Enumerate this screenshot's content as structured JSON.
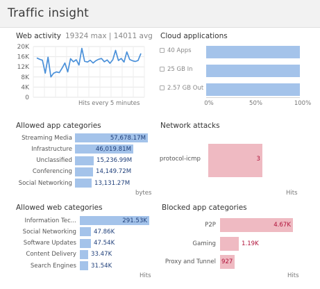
{
  "title": "Traffic insight",
  "web_activity": {
    "title": "Web activity",
    "summary": "19324 max | 14011 avg",
    "footer": "Hits every 5 minutes",
    "y_ticks": [
      "20K",
      "16K",
      "12K",
      "8K",
      "4K",
      "0"
    ],
    "line_color": "#4a90d9"
  },
  "cloud_applications": {
    "title": "Cloud applications",
    "rows": [
      {
        "label": "40 Apps",
        "icon": "app-icon",
        "fill": 1.0
      },
      {
        "label": "25 GB In",
        "icon": "download-icon",
        "fill": 1.0
      },
      {
        "label": "2.57 GB Out",
        "icon": "upload-icon",
        "fill": 1.0
      }
    ],
    "x_ticks": [
      "0%",
      "50%",
      "100%"
    ]
  },
  "allowed_app_categories": {
    "title": "Allowed app categories",
    "footer": "bytes",
    "rows": [
      {
        "label": "Streaming Media",
        "value": "57,678.17M",
        "fill": 1.0
      },
      {
        "label": "Infrastructure",
        "value": "46,019.81M",
        "fill": 0.8
      },
      {
        "label": "Unclassified",
        "value": "15,236.99M",
        "fill": 0.26
      },
      {
        "label": "Conferencing",
        "value": "14,149.72M",
        "fill": 0.25
      },
      {
        "label": "Social Networking",
        "value": "13,131.27M",
        "fill": 0.23
      }
    ]
  },
  "network_attacks": {
    "title": "Network attacks",
    "footer": "Hits",
    "rows": [
      {
        "label": "protocol-icmp",
        "value": "3",
        "fill": 1.0
      }
    ]
  },
  "allowed_web_categories": {
    "title": "Allowed web categories",
    "footer": "Hits",
    "rows": [
      {
        "label": "Information Tec...",
        "value": "291.53K",
        "fill": 1.0
      },
      {
        "label": "Social Networking",
        "value": "47.86K",
        "fill": 0.16
      },
      {
        "label": "Software Updates",
        "value": "47.54K",
        "fill": 0.16
      },
      {
        "label": "Content Delivery",
        "value": "33.47K",
        "fill": 0.11
      },
      {
        "label": "Search Engines",
        "value": "31.54K",
        "fill": 0.11
      }
    ]
  },
  "blocked_app_categories": {
    "title": "Blocked app categories",
    "footer": "Hits",
    "rows": [
      {
        "label": "P2P",
        "value": "4.67K",
        "fill": 1.0
      },
      {
        "label": "Gaming",
        "value": "1.19K",
        "fill": 0.26
      },
      {
        "label": "Proxy and Tunnel",
        "value": "927",
        "fill": 0.2
      }
    ]
  }
}
